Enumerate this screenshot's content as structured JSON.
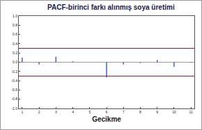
{
  "chart_data": {
    "type": "bar",
    "title": "PACF-birinci farkı alınmış soya üretimi",
    "x_label": "Gecikme",
    "x": [
      1,
      2,
      3,
      4,
      5,
      6,
      7,
      8,
      9,
      10,
      11
    ],
    "values": [
      0.1,
      -0.05,
      0.12,
      0.02,
      0.0,
      -0.33,
      -0.05,
      -0.02,
      0.05,
      -0.1,
      -0.01
    ],
    "color": "#3a5fcd",
    "confidence_limits": {
      "values": [
        -0.3,
        0.3
      ],
      "color": "#a01010"
    },
    "xlim": [
      0.8,
      11.2
    ],
    "xticks": [
      1,
      2,
      3,
      4,
      5,
      6,
      7,
      8,
      9,
      10,
      11
    ],
    "ylim": [
      -1,
      1
    ],
    "yticks": [
      {
        "value": -1,
        "label": "-1.0"
      },
      -0.8,
      -0.6,
      -0.4,
      -0.2,
      {
        "value": 0,
        "label": "0.0"
      },
      0.2,
      0.4,
      0.6,
      0.8,
      {
        "value": 1,
        "label": "1.0"
      }
    ],
    "grid": false
  }
}
